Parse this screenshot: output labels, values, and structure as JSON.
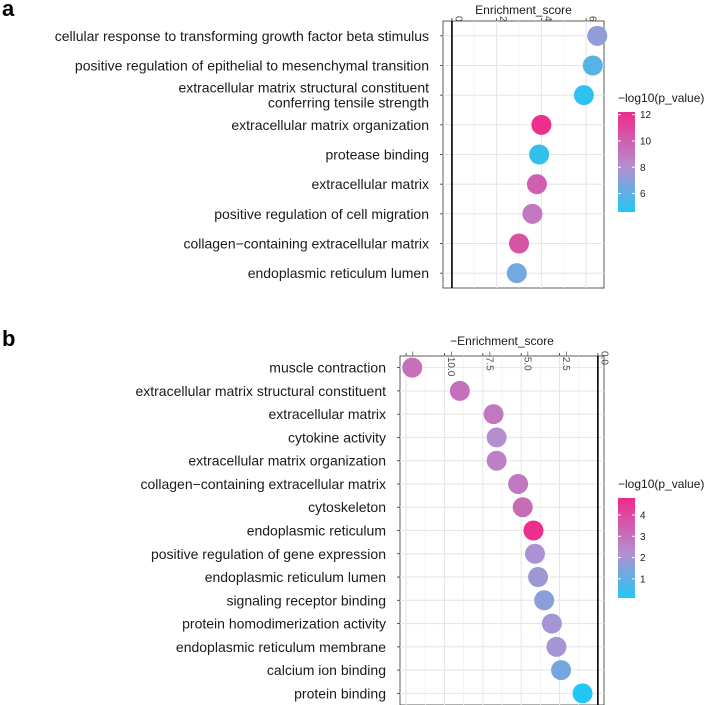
{
  "chart_data": [
    {
      "panel": "a",
      "type": "scatter",
      "xlabel": "Enrichment_score",
      "x_ticks": [
        "0",
        "2",
        "4",
        "6"
      ],
      "xlim": [
        -0.4,
        6.8
      ],
      "categories": [
        "cellular response to transforming growth factor beta stimulus",
        "positive regulation of epithelial to mesenchymal transition",
        "extracellular matrix structural constituent conferring tensile strength",
        "extracellular matrix organization",
        "protease binding",
        "extracellular matrix",
        "positive regulation of cell migration",
        "collagen−containing extracellular matrix",
        "endoplasmic reticulum lumen"
      ],
      "category_display": [
        [
          "cellular response to transforming growth factor beta stimulus"
        ],
        [
          "positive regulation of epithelial to mesenchymal transition"
        ],
        [
          "extracellular matrix structural constituent",
          "conferring tensile strength"
        ],
        [
          "extracellular matrix organization"
        ],
        [
          "protease binding"
        ],
        [
          "extracellular matrix"
        ],
        [
          "positive regulation of cell migration"
        ],
        [
          "collagen−containing extracellular matrix"
        ],
        [
          "endoplasmic reticulum lumen"
        ]
      ],
      "x": [
        6.5,
        6.3,
        5.9,
        4.0,
        3.9,
        3.8,
        3.6,
        3.0,
        2.9
      ],
      "color_value": [
        7.2,
        5.8,
        4.9,
        12.0,
        5.0,
        10.0,
        9.0,
        10.5,
        6.5
      ],
      "legend": {
        "title": "−log10(p_value)",
        "ticks": [
          "12",
          "10",
          "8",
          "6"
        ],
        "range": [
          4.6,
          12.2
        ],
        "low_color": "#22c7f3",
        "mid_color": "#b48fd0",
        "high_color": "#ef2a8a"
      },
      "grid": true
    },
    {
      "panel": "b",
      "type": "scatter",
      "xlabel": "−Enrichment_score",
      "x_ticks": [
        "−12.5",
        "−10.0",
        "−7.5",
        "−5.0",
        "−2.5",
        "0.0"
      ],
      "x_tick_values": [
        -12.5,
        -10.0,
        -7.5,
        -5.0,
        -2.5,
        0.0
      ],
      "xlim": [
        -12.9,
        0.4
      ],
      "categories": [
        "muscle contraction",
        "extracellular matrix structural constituent",
        "extracellular matrix",
        "cytokine activity",
        "extracellular matrix organization",
        "collagen−containing extracellular matrix",
        "cytoskeleton",
        "endoplasmic reticulum",
        "positive regulation of gene expression",
        "endoplasmic reticulum lumen",
        "signaling receptor binding",
        "protein homodimerization activity",
        "endoplasmic reticulum membrane",
        "calcium ion binding",
        "protein binding"
      ],
      "x": [
        -12.1,
        -9.0,
        -6.8,
        -6.6,
        -6.6,
        -5.2,
        -4.9,
        -4.2,
        -4.1,
        -3.9,
        -3.5,
        -3.0,
        -2.7,
        -2.4,
        -1.0
      ],
      "color_value": [
        3.0,
        3.0,
        2.8,
        2.2,
        2.6,
        2.8,
        3.1,
        4.7,
        2.1,
        1.9,
        1.6,
        2.0,
        2.0,
        1.3,
        0.1
      ],
      "legend": {
        "title": "−log10(p_value)",
        "ticks": [
          "4",
          "3",
          "2",
          "1"
        ],
        "range": [
          0.1,
          4.8
        ],
        "low_color": "#22c7f3",
        "mid_color": "#b48fd0",
        "high_color": "#ef2a8a"
      },
      "grid": true
    }
  ]
}
